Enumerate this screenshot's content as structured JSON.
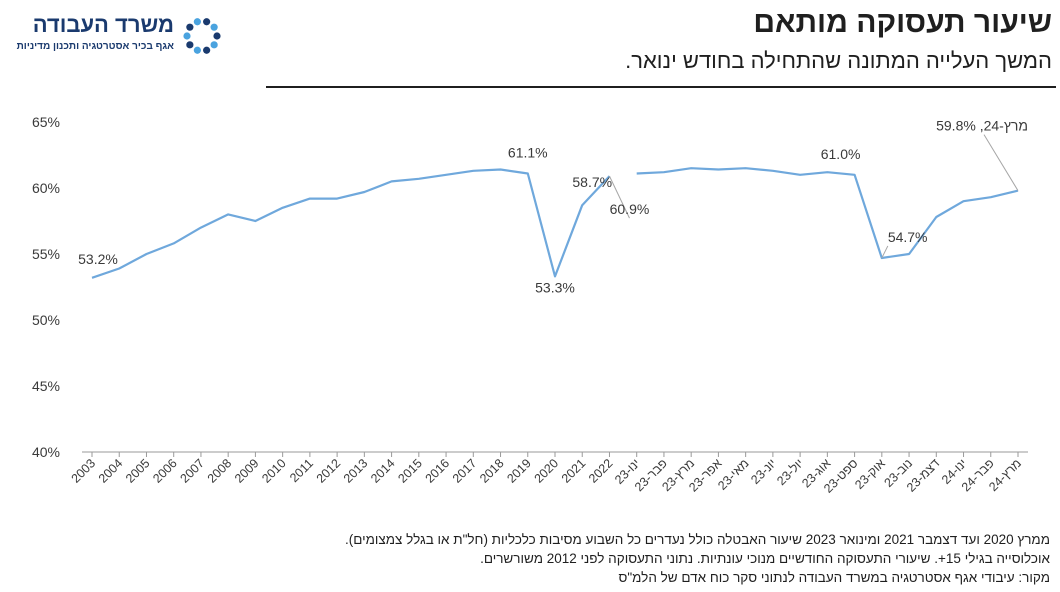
{
  "header": {
    "title": "שיעור תעסוקה מותאם",
    "subtitle": "המשך העלייה המתונה שהתחילה בחודש ינואר."
  },
  "logo": {
    "name": "משרד העבודה",
    "subtitle": "אגף בכיר אסטרטגיה ותכנון מדיניות",
    "icon": "ministry-logo-icon",
    "colors": [
      "#1a3a6e",
      "#4aa3df"
    ]
  },
  "notes": [
    "ממרץ 2020 ועד דצמבר 2021 ומינואר 2023 שיעור האבטלה כולל נעדרים כל השבוע מסיבות כלכליות (חל\"ת או בגלל צמצומים).",
    "אוכלוסייה בגילי 15+. שיעורי התעסוקה החודשיים מנוכי עונתיות. נתוני התעסוקה לפני 2012 משורשרים.",
    "מקור: עיבודי אגף אסטרטגיה במשרד העבודה לנתוני סקר כוח אדם של הלמ\"ס"
  ],
  "chart_data": {
    "type": "line",
    "title": "",
    "xlabel": "",
    "ylabel": "",
    "ylim": [
      40,
      65
    ],
    "yticks": [
      "40%",
      "45%",
      "50%",
      "55%",
      "60%",
      "65%"
    ],
    "grid": false,
    "line_color": "#6fa8dc",
    "categories": [
      "2003",
      "2004",
      "2005",
      "2006",
      "2007",
      "2008",
      "2009",
      "2010",
      "2011",
      "2012",
      "2013",
      "2014",
      "2015",
      "2016",
      "2017",
      "2018",
      "2019",
      "2020",
      "2021",
      "2022",
      "ינו-23",
      "פבר-23",
      "מרץ-23",
      "אפר-23",
      "מאי-23",
      "יונ-23",
      "יול-23",
      "אוג-23",
      "ספט-23",
      "אוק-23",
      "נוב-23",
      "דצמ-23",
      "ינו-24",
      "פבר-24",
      "מרץ-24"
    ],
    "series": [
      {
        "name": "",
        "segments": [
          {
            "from": 0,
            "values": [
              53.2,
              53.9,
              55.0,
              55.8,
              57.0,
              58.0,
              57.5,
              58.5,
              59.2,
              59.2,
              59.7,
              60.5,
              60.7,
              61.0,
              61.3,
              61.4,
              61.1,
              53.3,
              58.7,
              60.9
            ]
          },
          {
            "from": 20,
            "values": [
              61.1,
              61.2,
              61.5,
              61.4,
              61.5,
              61.3,
              61.0,
              61.2,
              61.0,
              54.7,
              55.0,
              57.8,
              59.0,
              59.3,
              59.8
            ]
          }
        ]
      }
    ],
    "annotations": [
      {
        "index": 0,
        "text": "53.2%"
      },
      {
        "index": 16,
        "text": "61.1%"
      },
      {
        "index": 17,
        "text": "53.3%"
      },
      {
        "index": 18,
        "text": "58.7%"
      },
      {
        "index": 19,
        "text": "60.9%"
      },
      {
        "index": 28,
        "text": "61.0%"
      },
      {
        "index": 29,
        "text": "54.7%"
      },
      {
        "index": 34,
        "text": "מרץ-24, 59.8%"
      }
    ]
  }
}
